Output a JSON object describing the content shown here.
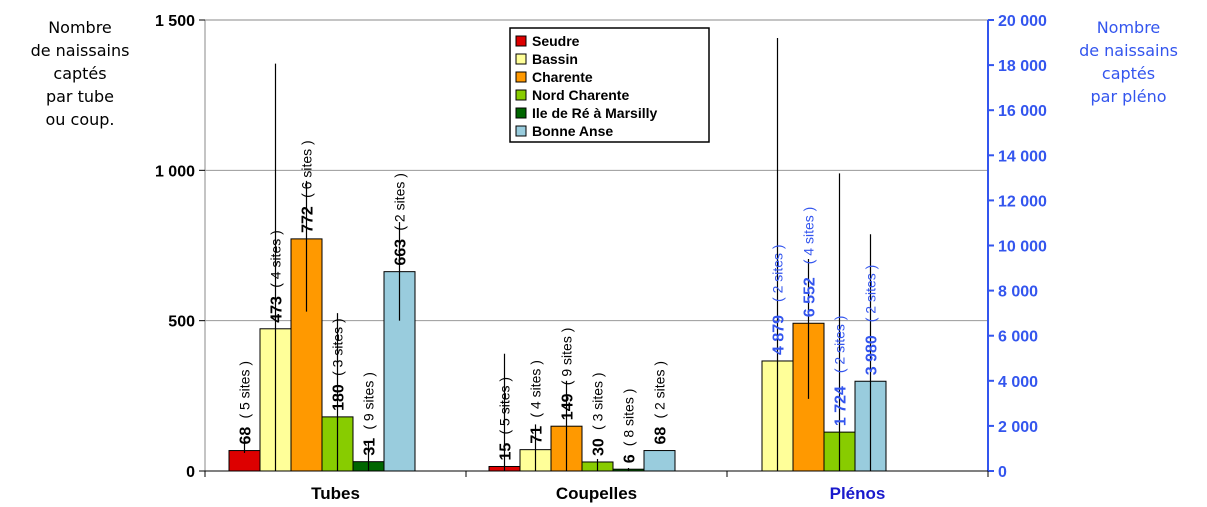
{
  "chart_data": {
    "type": "bar",
    "categories": [
      "Tubes",
      "Coupelles",
      "Plénos"
    ],
    "left_axis": {
      "label_lines": [
        "Nombre",
        "de naissains",
        "captés",
        "par tube",
        "ou coup."
      ],
      "range": [
        0,
        1500
      ],
      "ticks": [
        0,
        500,
        1000,
        1500
      ],
      "tick_labels": [
        "0",
        "500",
        "1 000",
        "1 500"
      ]
    },
    "right_axis": {
      "label_lines": [
        "Nombre",
        "de naissains",
        "captés",
        "par pléno"
      ],
      "range": [
        0,
        20000
      ],
      "ticks": [
        0,
        2000,
        4000,
        6000,
        8000,
        10000,
        12000,
        14000,
        16000,
        18000,
        20000
      ],
      "tick_labels": [
        "0",
        "2 000",
        "4 000",
        "6 000",
        "8 000",
        "10 000",
        "12 000",
        "14 000",
        "16 000",
        "18 000",
        "20 000"
      ],
      "color": "#3355ee"
    },
    "grid": true,
    "legend": {
      "placement": "top-center"
    },
    "series": [
      {
        "name": "Seudre",
        "color": "#dd0000"
      },
      {
        "name": "Bassin",
        "color": "#ffff99"
      },
      {
        "name": "Charente",
        "color": "#ff9900"
      },
      {
        "name": "Nord Charente",
        "color": "#88cc00"
      },
      {
        "name": "Ile de Ré à Marsilly",
        "color": "#006600"
      },
      {
        "name": "Bonne Anse",
        "color": "#99ccdd"
      }
    ],
    "groups": [
      {
        "category": "Tubes",
        "axis": "left",
        "bars": [
          {
            "series": "Seudre",
            "value": 68,
            "label": "68",
            "sites": "( 5 sites )",
            "err_low": 60,
            "err_high": 110
          },
          {
            "series": "Bassin",
            "value": 473,
            "label": "473",
            "sites": "( 4 sites )",
            "err_low": 0,
            "err_high": 1355
          },
          {
            "series": "Charente",
            "value": 772,
            "label": "772",
            "sites": "( 6 sites )",
            "err_low": 530,
            "err_high": 965
          },
          {
            "series": "Nord Charente",
            "value": 180,
            "label": "180",
            "sites": "( 3 sites )",
            "err_low": 0,
            "err_high": 525
          },
          {
            "series": "Ile de Ré à Marsilly",
            "value": 31,
            "label": "31",
            "sites": "( 9 sites )",
            "err_low": 0,
            "err_high": 95
          },
          {
            "series": "Bonne Anse",
            "value": 663,
            "label": "663",
            "sites": "( 2 sites )",
            "err_low": 500,
            "err_high": 828
          }
        ]
      },
      {
        "category": "Coupelles",
        "axis": "left",
        "bars": [
          {
            "series": "Seudre",
            "value": 15,
            "label": "15",
            "sites": "( 5 sites )",
            "err_low": 0,
            "err_high": 390
          },
          {
            "series": "Bassin",
            "value": 71,
            "label": "71",
            "sites": "( 4 sites )",
            "err_low": 0,
            "err_high": 155
          },
          {
            "series": "Charente",
            "value": 149,
            "label": "149",
            "sites": "( 9 sites )",
            "err_low": 0,
            "err_high": 300
          },
          {
            "series": "Nord Charente",
            "value": 30,
            "label": "30",
            "sites": "( 3 sites )",
            "err_low": 0,
            "err_high": 40
          },
          {
            "series": "Ile de Ré à Marsilly",
            "value": 6,
            "label": "6",
            "sites": "( 8 sites )",
            "err_low": 0,
            "err_high": 10
          },
          {
            "series": "Bonne Anse",
            "value": 68,
            "label": "68",
            "sites": "( 2 sites )",
            "err_low": null,
            "err_high": null
          }
        ]
      },
      {
        "category": "Plénos",
        "axis": "right",
        "bars": [
          {
            "series": "Bassin",
            "value": 4879,
            "label": "4 879",
            "sites": "( 2 sites )",
            "err_low": 0,
            "err_high": 19200
          },
          {
            "series": "Charente",
            "value": 6552,
            "label": "6 552",
            "sites": "( 4 sites )",
            "err_low": 3200,
            "err_high": 9400
          },
          {
            "series": "Nord Charente",
            "value": 1724,
            "label": "1 724",
            "sites": "( 2 sites )",
            "err_low": 0,
            "err_high": 13200
          },
          {
            "series": "Bonne Anse",
            "value": 3980,
            "label": "3 980",
            "sites": "( 2 sites )",
            "err_low": 0,
            "err_high": 10500
          }
        ]
      }
    ]
  }
}
